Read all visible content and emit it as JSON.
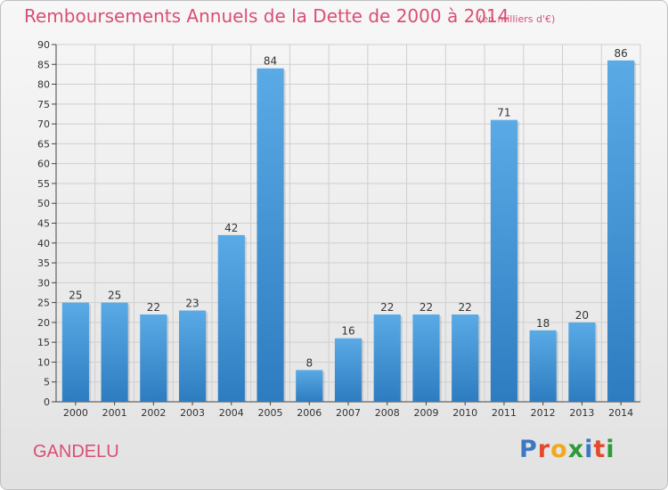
{
  "title": "Remboursements Annuels de la Dette de 2000 à 2014",
  "subtitle": "(en milliers d'€)",
  "commune": "GANDELU",
  "logo": {
    "text": "Proxiti",
    "letters": [
      "P",
      "r",
      "o",
      "x",
      "i",
      "t",
      "i"
    ],
    "colors": [
      "#3f78c2",
      "#e5492d",
      "#f2a81d",
      "#2e9a3a",
      "#3f78c2",
      "#e5492d",
      "#2e9a3a"
    ]
  },
  "colors": {
    "bar": "#4b9edd",
    "bar_dark": "#2d7cc0",
    "title": "#d94f75",
    "axis": "#444444",
    "grid": "#cfcfcf"
  },
  "chart_data": {
    "type": "bar",
    "categories": [
      "2000",
      "2001",
      "2002",
      "2003",
      "2004",
      "2005",
      "2006",
      "2007",
      "2008",
      "2009",
      "2010",
      "2011",
      "2012",
      "2013",
      "2014"
    ],
    "values": [
      25,
      25,
      22,
      23,
      42,
      84,
      8,
      16,
      22,
      22,
      22,
      71,
      18,
      20,
      86
    ],
    "title": "Remboursements Annuels de la Dette de 2000 à 2014",
    "subtitle": "(en milliers d'€)",
    "xlabel": "",
    "ylabel": "",
    "ylim": [
      0,
      90
    ],
    "yticks": [
      0,
      5,
      10,
      15,
      20,
      25,
      30,
      35,
      40,
      45,
      50,
      55,
      60,
      65,
      70,
      75,
      80,
      85,
      90
    ],
    "grid": true,
    "data_labels": true
  }
}
